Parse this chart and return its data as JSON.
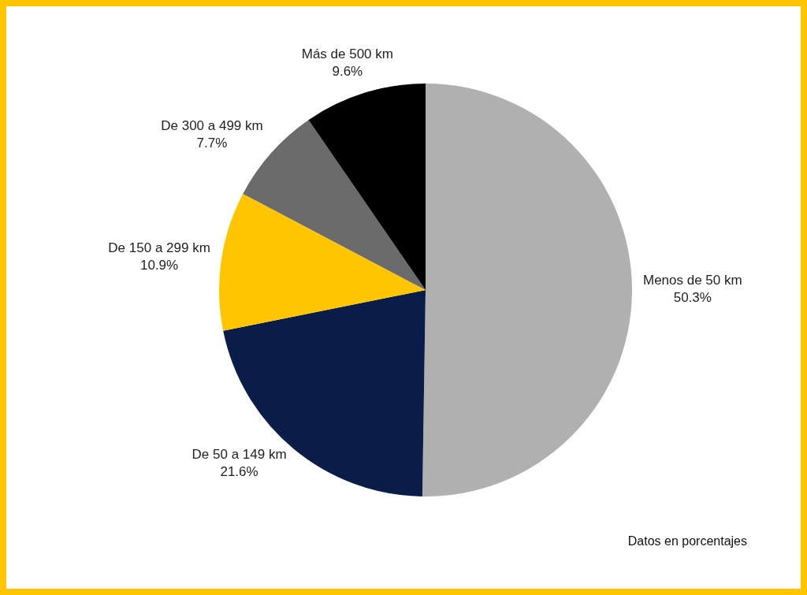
{
  "chart_data": {
    "type": "pie",
    "categories": [
      "Menos de 50 km",
      "De 50 a 149 km",
      "De 150 a 299 km",
      "De 300 a 499 km",
      "Más de 500 km"
    ],
    "values": [
      50.3,
      21.6,
      10.9,
      7.7,
      9.6
    ],
    "colors": [
      "#b1b0b0",
      "#091d48",
      "#ffc600",
      "#6b6b6b",
      "#000000"
    ],
    "value_labels": [
      "50.3%",
      "21.6%",
      "10.9%",
      "7.7%",
      "9.6%"
    ],
    "annotations": [
      "Datos en porcentajes"
    ]
  }
}
